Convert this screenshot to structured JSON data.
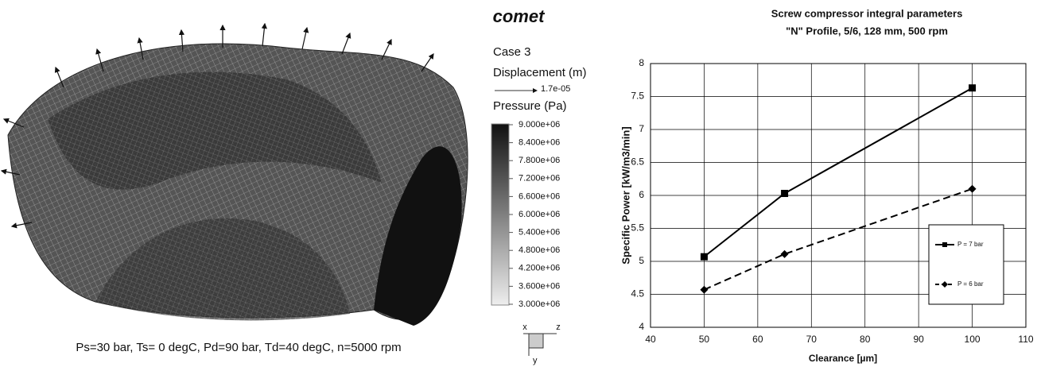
{
  "left_panel": {
    "caption": "Ps=30 bar, Ts= 0 degC, Pd=90 bar, Td=40 degC, n=5000 rpm",
    "logo": "comet",
    "case": "Case 3",
    "displacement_label": "Displacement (m)",
    "displacement_ref": "1.7e-05",
    "pressure_label": "Pressure (Pa)",
    "colorbar": {
      "lim": [
        3000000,
        9000000
      ],
      "ticks": [
        {
          "value": 9000000,
          "label": "9.000e+06"
        },
        {
          "value": 8400000,
          "label": "8.400e+06"
        },
        {
          "value": 7800000,
          "label": "7.800e+06"
        },
        {
          "value": 7200000,
          "label": "7.200e+06"
        },
        {
          "value": 6600000,
          "label": "6.600e+06"
        },
        {
          "value": 6000000,
          "label": "6.000e+06"
        },
        {
          "value": 5400000,
          "label": "5.400e+06"
        },
        {
          "value": 4800000,
          "label": "4.800e+06"
        },
        {
          "value": 4200000,
          "label": "4.200e+06"
        },
        {
          "value": 3600000,
          "label": "3.600e+06"
        },
        {
          "value": 3000000,
          "label": "3.000e+06"
        }
      ]
    },
    "axes_triad": [
      "x",
      "z",
      "y"
    ]
  },
  "chart_data": {
    "type": "line",
    "title": [
      "Screw compressor integral parameters",
      "\"N\" Profile, 5/6, 128 mm, 500 rpm"
    ],
    "x_label": "Clearance [µm]",
    "y_label": "Specific Power [kW/m3/min]",
    "x": [
      50,
      65,
      100
    ],
    "series": [
      {
        "name": "P = 7 bar",
        "color": "#000000",
        "line_style": "solid",
        "marker": "square",
        "values": [
          5.07,
          6.03,
          7.63
        ]
      },
      {
        "name": "P = 6 bar",
        "color": "#000000",
        "line_style": "dashed",
        "marker": "diamond",
        "values": [
          4.57,
          5.11,
          6.1
        ]
      }
    ],
    "xlim": [
      40,
      110
    ],
    "xticks": [
      40,
      50,
      60,
      70,
      80,
      90,
      100,
      110
    ],
    "ylim": [
      4,
      8
    ],
    "yticks": [
      4,
      4.5,
      5,
      5.5,
      6,
      6.5,
      7,
      7.5,
      8
    ],
    "grid": true,
    "legend": "right"
  }
}
